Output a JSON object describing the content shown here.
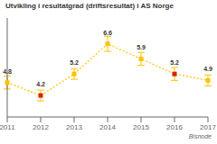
{
  "chart_data": {
    "type": "line",
    "title": "Utvikling i resultatgrad (driftsresultat) i AS Norge",
    "categories": [
      "2011",
      "2012",
      "2013",
      "2014",
      "2015",
      "2016",
      "2017"
    ],
    "values": [
      4.8,
      4.2,
      5.2,
      6.6,
      5.9,
      5.2,
      4.9
    ],
    "errors": [
      0.3,
      0.25,
      0.25,
      0.35,
      0.3,
      0.3,
      0.25
    ],
    "color": "#ffc200",
    "colors": [
      "#ffc200",
      "#dd2200",
      "#ffc200",
      "#ffc200",
      "#ffc200",
      "#dd2200",
      "#ffc200"
    ],
    "marker": "square",
    "line_style": "dotted",
    "data_labels": true,
    "ylim": [
      3.2,
      7.8
    ],
    "tick_labels": "x",
    "grid": false,
    "annotations": [
      "Bisnode"
    ]
  }
}
